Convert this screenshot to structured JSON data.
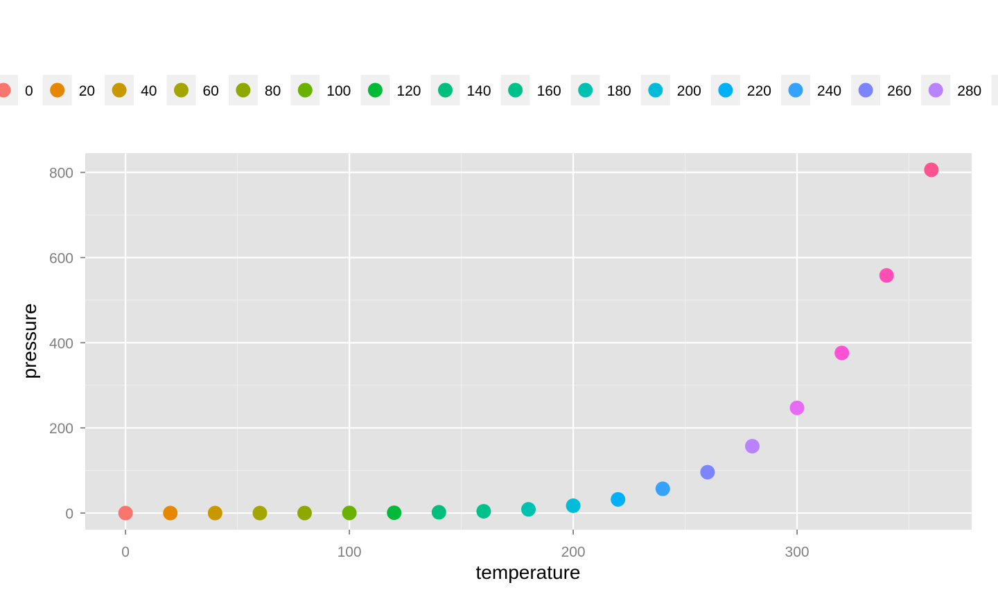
{
  "chart_data": {
    "type": "scatter",
    "xlabel": "temperature",
    "ylabel": "pressure",
    "xlim": [
      -18,
      378
    ],
    "ylim": [
      -39,
      845
    ],
    "x_ticks": [
      0,
      100,
      200,
      300
    ],
    "x_minor_ticks": [
      50,
      150,
      250,
      350
    ],
    "y_ticks": [
      0,
      200,
      400,
      600,
      800
    ],
    "y_minor_ticks": [
      100,
      300,
      500,
      700
    ],
    "grid": true,
    "legend_position": "top",
    "color_by": "temperature",
    "points": [
      {
        "x": 0,
        "y": 0.0002,
        "color": "#F8766D"
      },
      {
        "x": 20,
        "y": 0.0012,
        "color": "#E58700"
      },
      {
        "x": 40,
        "y": 0.006,
        "color": "#C99800"
      },
      {
        "x": 60,
        "y": 0.03,
        "color": "#A3A500"
      },
      {
        "x": 80,
        "y": 0.09,
        "color": "#8FA800"
      },
      {
        "x": 100,
        "y": 0.27,
        "color": "#6BB100"
      },
      {
        "x": 120,
        "y": 0.75,
        "color": "#00BA38"
      },
      {
        "x": 140,
        "y": 1.85,
        "color": "#00BF7D"
      },
      {
        "x": 160,
        "y": 4.2,
        "color": "#00C08B"
      },
      {
        "x": 180,
        "y": 8.8,
        "color": "#00C0AF"
      },
      {
        "x": 200,
        "y": 17.3,
        "color": "#00BCD8"
      },
      {
        "x": 220,
        "y": 32.1,
        "color": "#00B0F6"
      },
      {
        "x": 240,
        "y": 57,
        "color": "#35A2FF"
      },
      {
        "x": 260,
        "y": 96,
        "color": "#7C84FF"
      },
      {
        "x": 280,
        "y": 157,
        "color": "#B983FF"
      },
      {
        "x": 300,
        "y": 247,
        "color": "#E76BF3"
      },
      {
        "x": 320,
        "y": 376,
        "color": "#FF51D6"
      },
      {
        "x": 340,
        "y": 558,
        "color": "#FF4FB6"
      },
      {
        "x": 360,
        "y": 806,
        "color": "#FF5390"
      }
    ],
    "legend": [
      {
        "label": "0",
        "color": "#F8766D"
      },
      {
        "label": "20",
        "color": "#E58700"
      },
      {
        "label": "40",
        "color": "#C99800"
      },
      {
        "label": "60",
        "color": "#A3A500"
      },
      {
        "label": "80",
        "color": "#8FA800"
      },
      {
        "label": "100",
        "color": "#6BB100"
      },
      {
        "label": "120",
        "color": "#00BA38"
      },
      {
        "label": "140",
        "color": "#00BF7D"
      },
      {
        "label": "160",
        "color": "#00C08B"
      },
      {
        "label": "180",
        "color": "#00C0AF"
      },
      {
        "label": "200",
        "color": "#00BCD8"
      },
      {
        "label": "220",
        "color": "#00B0F6"
      },
      {
        "label": "240",
        "color": "#35A2FF"
      },
      {
        "label": "260",
        "color": "#7C84FF"
      },
      {
        "label": "280",
        "color": "#B983FF"
      },
      {
        "label": "",
        "color": "#E76BF3"
      }
    ],
    "colors": {
      "panel": "#E3E3E3",
      "grid_major": "#FFFFFF",
      "grid_minor": "#F0F0F0",
      "legend_key": "#F0F0F0",
      "tick": "#7F7F7F"
    }
  }
}
